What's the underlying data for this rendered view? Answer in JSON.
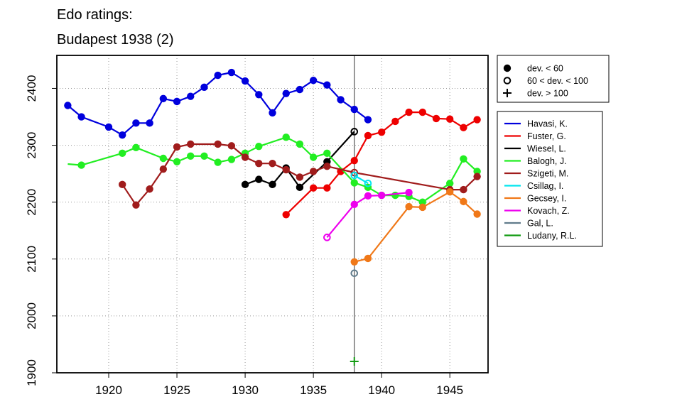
{
  "chart_data": {
    "type": "line",
    "title": "Edo ratings:",
    "subtitle": "Budapest 1938 (2)",
    "xlabel": "",
    "ylabel": "",
    "xlim": [
      1916.2,
      1947.8
    ],
    "ylim": [
      1900,
      2458
    ],
    "x_ticks": [
      1920,
      1925,
      1930,
      1935,
      1940,
      1945
    ],
    "y_ticks": [
      1900,
      2000,
      2100,
      2200,
      2300,
      2400
    ],
    "grid": true,
    "event_year": 1938,
    "marker_legend": [
      {
        "symbol": "filled-circle",
        "label": "dev. < 60"
      },
      {
        "symbol": "open-circle",
        "label": "60 < dev. < 100"
      },
      {
        "symbol": "plus",
        "label": "dev. > 100"
      }
    ],
    "legend_position": "right",
    "series": [
      {
        "name": "Havasi, K.",
        "color": "#0000dd",
        "points": [
          [
            1917,
            2370,
            "f"
          ],
          [
            1918,
            2350,
            "f"
          ],
          [
            1920,
            2332,
            "f"
          ],
          [
            1921,
            2318,
            "f"
          ],
          [
            1922,
            2339,
            "f"
          ],
          [
            1923,
            2339,
            "f"
          ],
          [
            1924,
            2382,
            "f"
          ],
          [
            1925,
            2377,
            "f"
          ],
          [
            1926,
            2386,
            "f"
          ],
          [
            1927,
            2402,
            "f"
          ],
          [
            1928,
            2423,
            "f"
          ],
          [
            1929,
            2428,
            "f"
          ],
          [
            1930,
            2413,
            "f"
          ],
          [
            1931,
            2389,
            "f"
          ],
          [
            1932,
            2357,
            "f"
          ],
          [
            1933,
            2391,
            "f"
          ],
          [
            1934,
            2398,
            "f"
          ],
          [
            1935,
            2414,
            "f"
          ],
          [
            1936,
            2406,
            "f"
          ],
          [
            1937,
            2380,
            "f"
          ],
          [
            1938,
            2363,
            "f"
          ],
          [
            1939,
            2345,
            "f"
          ]
        ]
      },
      {
        "name": "Fuster, G.",
        "color": "#ee0000",
        "points": [
          [
            1933,
            2178,
            "f"
          ],
          [
            1935,
            2225,
            "f"
          ],
          [
            1936,
            2225,
            "f"
          ],
          [
            1937,
            2254,
            "f"
          ],
          [
            1938,
            2273,
            "f"
          ],
          [
            1939,
            2317,
            "f"
          ],
          [
            1940,
            2323,
            "f"
          ],
          [
            1941,
            2342,
            "f"
          ],
          [
            1942,
            2358,
            "f"
          ],
          [
            1943,
            2358,
            "f"
          ],
          [
            1944,
            2347,
            "f"
          ],
          [
            1945,
            2346,
            "f"
          ],
          [
            1946,
            2331,
            "f"
          ],
          [
            1947,
            2345,
            "f"
          ]
        ]
      },
      {
        "name": "Wiesel, L.",
        "color": "#000000",
        "points": [
          [
            1930,
            2231,
            "f"
          ],
          [
            1931,
            2240,
            "f"
          ],
          [
            1932,
            2231,
            "f"
          ],
          [
            1933,
            2260,
            "f"
          ],
          [
            1934,
            2226,
            "f"
          ],
          [
            1936,
            2271,
            "f"
          ],
          [
            1938,
            2324,
            "o"
          ]
        ]
      },
      {
        "name": "Balogh, J.",
        "color": "#22ee22",
        "points": [
          [
            1917,
            2267,
            "n"
          ],
          [
            1918,
            2265,
            "f"
          ],
          [
            1921,
            2286,
            "f"
          ],
          [
            1922,
            2296,
            "f"
          ],
          [
            1924,
            2277,
            "f"
          ],
          [
            1925,
            2271,
            "f"
          ],
          [
            1926,
            2281,
            "f"
          ],
          [
            1927,
            2281,
            "f"
          ],
          [
            1928,
            2270,
            "f"
          ],
          [
            1929,
            2275,
            "f"
          ],
          [
            1930,
            2286,
            "f"
          ],
          [
            1931,
            2298,
            "f"
          ],
          [
            1933,
            2314,
            "f"
          ],
          [
            1934,
            2302,
            "f"
          ],
          [
            1935,
            2279,
            "f"
          ],
          [
            1936,
            2286,
            "f"
          ],
          [
            1938,
            2234,
            "f"
          ],
          [
            1939,
            2226,
            "f"
          ],
          [
            1940,
            2212,
            "f"
          ],
          [
            1941,
            2212,
            "f"
          ],
          [
            1942,
            2210,
            "f"
          ],
          [
            1943,
            2200,
            "f"
          ],
          [
            1945,
            2233,
            "f"
          ],
          [
            1946,
            2276,
            "f"
          ],
          [
            1947,
            2254,
            "f"
          ]
        ]
      },
      {
        "name": "Szigeti, M.",
        "color": "#a01c1c",
        "points": [
          [
            1921,
            2231,
            "f"
          ],
          [
            1922,
            2195,
            "f"
          ],
          [
            1923,
            2223,
            "f"
          ],
          [
            1924,
            2258,
            "f"
          ],
          [
            1925,
            2297,
            "f"
          ],
          [
            1926,
            2302,
            "f"
          ],
          [
            1928,
            2302,
            "f"
          ],
          [
            1929,
            2299,
            "f"
          ],
          [
            1930,
            2279,
            "f"
          ],
          [
            1931,
            2268,
            "f"
          ],
          [
            1932,
            2268,
            "f"
          ],
          [
            1933,
            2257,
            "f"
          ],
          [
            1934,
            2244,
            "f"
          ],
          [
            1935,
            2254,
            "f"
          ],
          [
            1936,
            2263,
            "f"
          ],
          [
            1938,
            2252,
            "o"
          ],
          [
            1945,
            2222,
            "f"
          ],
          [
            1946,
            2222,
            "f"
          ],
          [
            1947,
            2245,
            "f"
          ]
        ]
      },
      {
        "name": "Csillag, I.",
        "color": "#00e5ee",
        "points": [
          [
            1938,
            2247,
            "o"
          ],
          [
            1939,
            2233,
            "o"
          ]
        ]
      },
      {
        "name": "Gecsey, I.",
        "color": "#f07818",
        "points": [
          [
            1938,
            2095,
            "f"
          ],
          [
            1939,
            2101,
            "f"
          ],
          [
            1942,
            2192,
            "f"
          ],
          [
            1943,
            2191,
            "f"
          ],
          [
            1945,
            2218,
            "f"
          ],
          [
            1946,
            2201,
            "f"
          ],
          [
            1947,
            2179,
            "f"
          ]
        ]
      },
      {
        "name": "Kovach, Z.",
        "color": "#ee00ee",
        "points": [
          [
            1936,
            2138,
            "o"
          ],
          [
            1938,
            2196,
            "f"
          ],
          [
            1939,
            2211,
            "f"
          ],
          [
            1940,
            2212,
            "f"
          ],
          [
            1942,
            2217,
            "f"
          ]
        ]
      },
      {
        "name": "Gal, L.",
        "color": "#607b8b",
        "points": [
          [
            1938,
            2075,
            "o"
          ]
        ]
      },
      {
        "name": "Ludany, R.L.",
        "color": "#109a10",
        "points": [
          [
            1938,
            1920,
            "p"
          ]
        ]
      }
    ]
  }
}
